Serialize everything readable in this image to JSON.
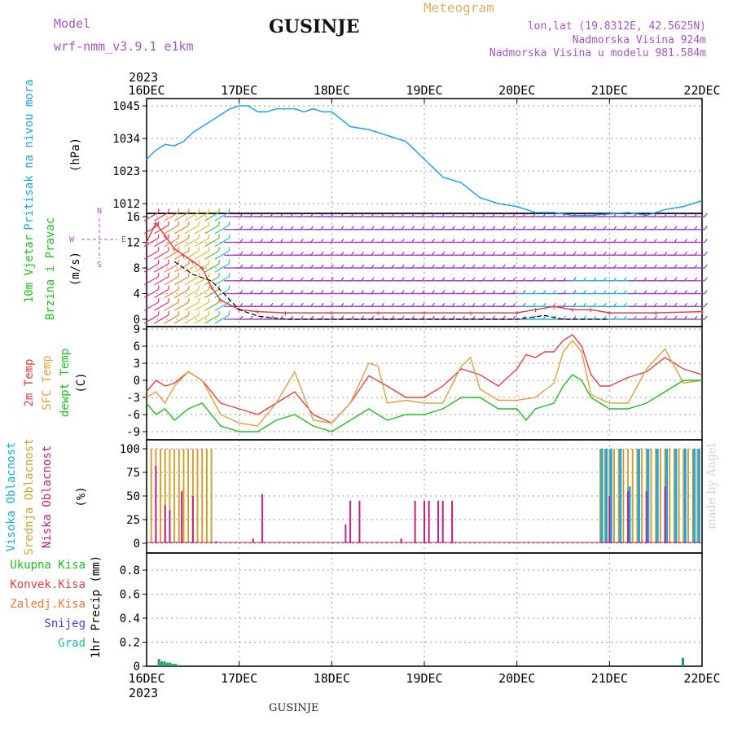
{
  "header": {
    "title": "GUSINJE",
    "model_label": "Model",
    "model_name": "wrf-nmm_v3.9.1 e1km",
    "meteogram": "Meteogram",
    "lonlat": "lon,lat (19.8312E, 42.5625N)",
    "altitude": "Nadmorska Visina 924m",
    "model_altitude": "Nadmorska Visina u modelu 981.584m",
    "bottom_title": "GUSINJE",
    "watermark": "made by Angel"
  },
  "time_axis": {
    "year_label": "2023",
    "ticks": [
      "16DEC",
      "17DEC",
      "18DEC",
      "19DEC",
      "20DEC",
      "21DEC",
      "22DEC"
    ]
  },
  "colors": {
    "pressure": "#1aa7e8",
    "temp2m": "#e84040",
    "sfc_temp": "#e0a040",
    "dewpt": "#20c020",
    "high_cloud": "#1aa7e8",
    "mid_cloud": "#d4a030",
    "low_cloud": "#c8207a",
    "total_precip": "#20a060",
    "wind_speed": "#e84040",
    "gust": "#000000"
  },
  "chart_data": [
    {
      "type": "line",
      "name": "pressure",
      "ylabel_lines": [
        "Pritisak na nivou mora",
        "(hPa)"
      ],
      "yticks": [
        1012,
        1023,
        1034,
        1045
      ],
      "ylim": [
        1005,
        1049
      ],
      "x_days": [
        0,
        0.1,
        0.2,
        0.3,
        0.4,
        0.5,
        0.6,
        0.7,
        0.8,
        0.9,
        1.0,
        1.1,
        1.2,
        1.3,
        1.4,
        1.5,
        1.6,
        1.7,
        1.8,
        1.9,
        2.0,
        2.2,
        2.4,
        2.5,
        2.6,
        2.8,
        3.0,
        3.2,
        3.4,
        3.6,
        3.8,
        4.0,
        4.2,
        4.4,
        4.6,
        4.8,
        5.0,
        5.2,
        5.4,
        5.6,
        5.8,
        6.0
      ],
      "values": [
        1027,
        1030,
        1032,
        1031.5,
        1033,
        1036,
        1038,
        1040,
        1042,
        1044,
        1045,
        1045,
        1043,
        1043,
        1044,
        1044,
        1044,
        1043,
        1044,
        1043,
        1043,
        1038,
        1037,
        1036,
        1035,
        1033,
        1027,
        1021,
        1019,
        1014,
        1012,
        1011,
        1009,
        1009,
        1008,
        1008,
        1008.5,
        1009,
        1008,
        1010,
        1011,
        1013
      ]
    },
    {
      "type": "barbs",
      "name": "wind",
      "ylabel_lines": [
        "10m Vjetar",
        "Brzina i Pravac",
        "(m/s)"
      ],
      "compass": [
        "N",
        "W",
        "E",
        "S"
      ],
      "yticks": [
        0,
        4,
        8,
        12,
        16
      ],
      "ylim": [
        0,
        16
      ],
      "speed_x_days": [
        0,
        0.1,
        0.2,
        0.3,
        0.4,
        0.5,
        0.6,
        0.7,
        0.8,
        1.0,
        1.2,
        1.5,
        2.0,
        2.5,
        3.0,
        3.5,
        4.0,
        4.2,
        4.4,
        4.6,
        4.8,
        5.0,
        5.5,
        6.0
      ],
      "speed_values": [
        12,
        15,
        13,
        11,
        10,
        9,
        8,
        5,
        3,
        1.5,
        1.2,
        1,
        1,
        1,
        1,
        1,
        1,
        1.5,
        2,
        1.5,
        1.5,
        1,
        1,
        1.2
      ],
      "gust_x_days": [
        0.3,
        0.5,
        0.7,
        0.9,
        1.0,
        1.2,
        1.5,
        2.0,
        3.0,
        4.0,
        4.3,
        4.5,
        4.8,
        5.0
      ],
      "gust_values": [
        9,
        7,
        6,
        3,
        1.5,
        0.5,
        0,
        0,
        0,
        0,
        0.6,
        0,
        0,
        0
      ]
    },
    {
      "type": "line",
      "name": "temperature",
      "ylabel_lines": [
        "2m Temp",
        "SFC Temp",
        "dewpt Temp",
        "(C)"
      ],
      "series": [
        {
          "name": "2m Temp",
          "x_days": [
            0,
            0.1,
            0.2,
            0.3,
            0.45,
            0.6,
            0.8,
            1.0,
            1.2,
            1.4,
            1.6,
            1.8,
            2.0,
            2.2,
            2.4,
            2.6,
            2.8,
            3.0,
            3.2,
            3.4,
            3.6,
            3.8,
            4.0,
            4.1,
            4.2,
            4.3,
            4.4,
            4.5,
            4.6,
            4.7,
            4.8,
            4.9,
            5.0,
            5.2,
            5.4,
            5.6,
            5.8,
            6.0
          ],
          "values": [
            -2,
            0,
            -1,
            -0.5,
            1.5,
            0,
            -4,
            -5,
            -6,
            -4,
            -2,
            -6,
            -7.5,
            -4,
            0.8,
            -1,
            -3,
            -3,
            -1,
            2,
            1,
            -1,
            2,
            4.5,
            4,
            5,
            5,
            7,
            8,
            6,
            1,
            -1,
            -1,
            0.5,
            1.5,
            4,
            2,
            1
          ]
        },
        {
          "name": "SFC Temp",
          "x_days": [
            0,
            0.1,
            0.2,
            0.3,
            0.45,
            0.6,
            0.8,
            1.0,
            1.2,
            1.4,
            1.6,
            1.8,
            2.0,
            2.2,
            2.4,
            2.5,
            2.6,
            2.8,
            3.0,
            3.2,
            3.4,
            3.5,
            3.6,
            3.8,
            4.0,
            4.2,
            4.4,
            4.5,
            4.6,
            4.7,
            4.8,
            5.0,
            5.2,
            5.4,
            5.6,
            5.8,
            6.0
          ],
          "values": [
            -3,
            -2,
            -4,
            -1,
            1.5,
            0,
            -6,
            -7.5,
            -8,
            -4,
            1.5,
            -7,
            -7.5,
            -4,
            3,
            2.5,
            -4,
            -3.5,
            -4,
            -4,
            2.5,
            4,
            -1.5,
            -3.5,
            -3.5,
            -3,
            -0.5,
            5,
            7,
            5,
            -2.5,
            -4,
            -4,
            2,
            5.5,
            -0.5,
            0
          ]
        },
        {
          "name": "dewpt Temp",
          "x_days": [
            0,
            0.1,
            0.2,
            0.3,
            0.45,
            0.6,
            0.8,
            1.0,
            1.2,
            1.4,
            1.6,
            1.8,
            2.0,
            2.2,
            2.4,
            2.6,
            2.8,
            3.0,
            3.2,
            3.4,
            3.6,
            3.8,
            4.0,
            4.1,
            4.2,
            4.4,
            4.5,
            4.6,
            4.7,
            4.8,
            5.0,
            5.2,
            5.4,
            5.6,
            5.8,
            6.0
          ],
          "values": [
            -4,
            -6,
            -5,
            -7,
            -5,
            -4,
            -8,
            -9,
            -9,
            -7,
            -6,
            -8,
            -9,
            -7,
            -5,
            -7,
            -6,
            -6,
            -5,
            -3,
            -3,
            -5,
            -5,
            -7,
            -5,
            -4,
            -1,
            1,
            0,
            -3,
            -5,
            -5,
            -4,
            -2,
            0,
            0
          ]
        }
      ],
      "yticks": [
        -9,
        -6,
        -3,
        0,
        3,
        6,
        9
      ],
      "ylim": [
        -11,
        9
      ]
    },
    {
      "type": "bar",
      "name": "cloudiness",
      "ylabel_lines": [
        "Visoka Oblacnost",
        "Srednja Oblacnost",
        "Niska Oblacnost",
        "(%)"
      ],
      "yticks": [
        0,
        25,
        50,
        75,
        100
      ],
      "ylim": [
        0,
        100
      ],
      "series": [
        {
          "name": "Srednja Oblacnost",
          "x_days": [
            0.05,
            0.1,
            0.15,
            0.2,
            0.25,
            0.3,
            0.35,
            0.4,
            0.45,
            0.5,
            0.55,
            0.6,
            0.65,
            0.7,
            4.9,
            4.95,
            5.0,
            5.05,
            5.1,
            5.15,
            5.2,
            5.25,
            5.3,
            5.35,
            5.4,
            5.45,
            5.5,
            5.55,
            5.6,
            5.65,
            5.7,
            5.75,
            5.8,
            5.85,
            5.9,
            5.95
          ],
          "values": [
            100,
            100,
            100,
            100,
            100,
            100,
            100,
            100,
            100,
            100,
            100,
            100,
            100,
            100,
            100,
            100,
            100,
            100,
            100,
            100,
            100,
            100,
            100,
            100,
            100,
            100,
            100,
            100,
            100,
            100,
            100,
            100,
            100,
            100,
            100,
            100
          ]
        },
        {
          "name": "Visoka Oblacnost",
          "x_days": [
            4.9,
            4.95,
            5.0,
            5.1,
            5.2,
            5.3,
            5.4,
            5.5,
            5.6,
            5.7,
            5.8,
            5.9,
            5.95
          ],
          "values": [
            100,
            100,
            100,
            100,
            60,
            100,
            100,
            100,
            100,
            100,
            100,
            100,
            100
          ]
        },
        {
          "name": "Niska Oblacnost",
          "x_days": [
            0.1,
            0.2,
            0.25,
            0.38,
            0.5,
            0.75,
            1.15,
            1.25,
            2.15,
            2.2,
            2.3,
            2.75,
            2.9,
            3.0,
            3.05,
            3.15,
            3.2,
            3.3,
            5.0,
            5.2,
            5.4,
            5.6
          ],
          "values": [
            82,
            40,
            35,
            55,
            50,
            2,
            5,
            52,
            20,
            45,
            45,
            5,
            45,
            45,
            45,
            45,
            45,
            45,
            50,
            55,
            55,
            60
          ]
        }
      ]
    },
    {
      "type": "bar",
      "name": "precipitation",
      "ylabel_lines": [
        "1hr Precip (mm)"
      ],
      "legend": [
        "Ukupna Kisa",
        "Konvek.Kisa",
        "Zaledj.Kisa",
        "Snijeg",
        "Grad"
      ],
      "legend_colors": [
        "#20c020",
        "#e84040",
        "#f07830",
        "#4040e0",
        "#20c0a0"
      ],
      "yticks": [
        0,
        0.2,
        0.4,
        0.6,
        0.8
      ],
      "ylim": [
        0,
        0.95
      ],
      "x_days": [
        0.12,
        0.15,
        0.18,
        0.21,
        0.24,
        0.27,
        0.3,
        0.33,
        5.78
      ],
      "values": [
        0.06,
        0.04,
        0.04,
        0.03,
        0.03,
        0.02,
        0.02,
        0.01,
        0.07
      ]
    }
  ]
}
